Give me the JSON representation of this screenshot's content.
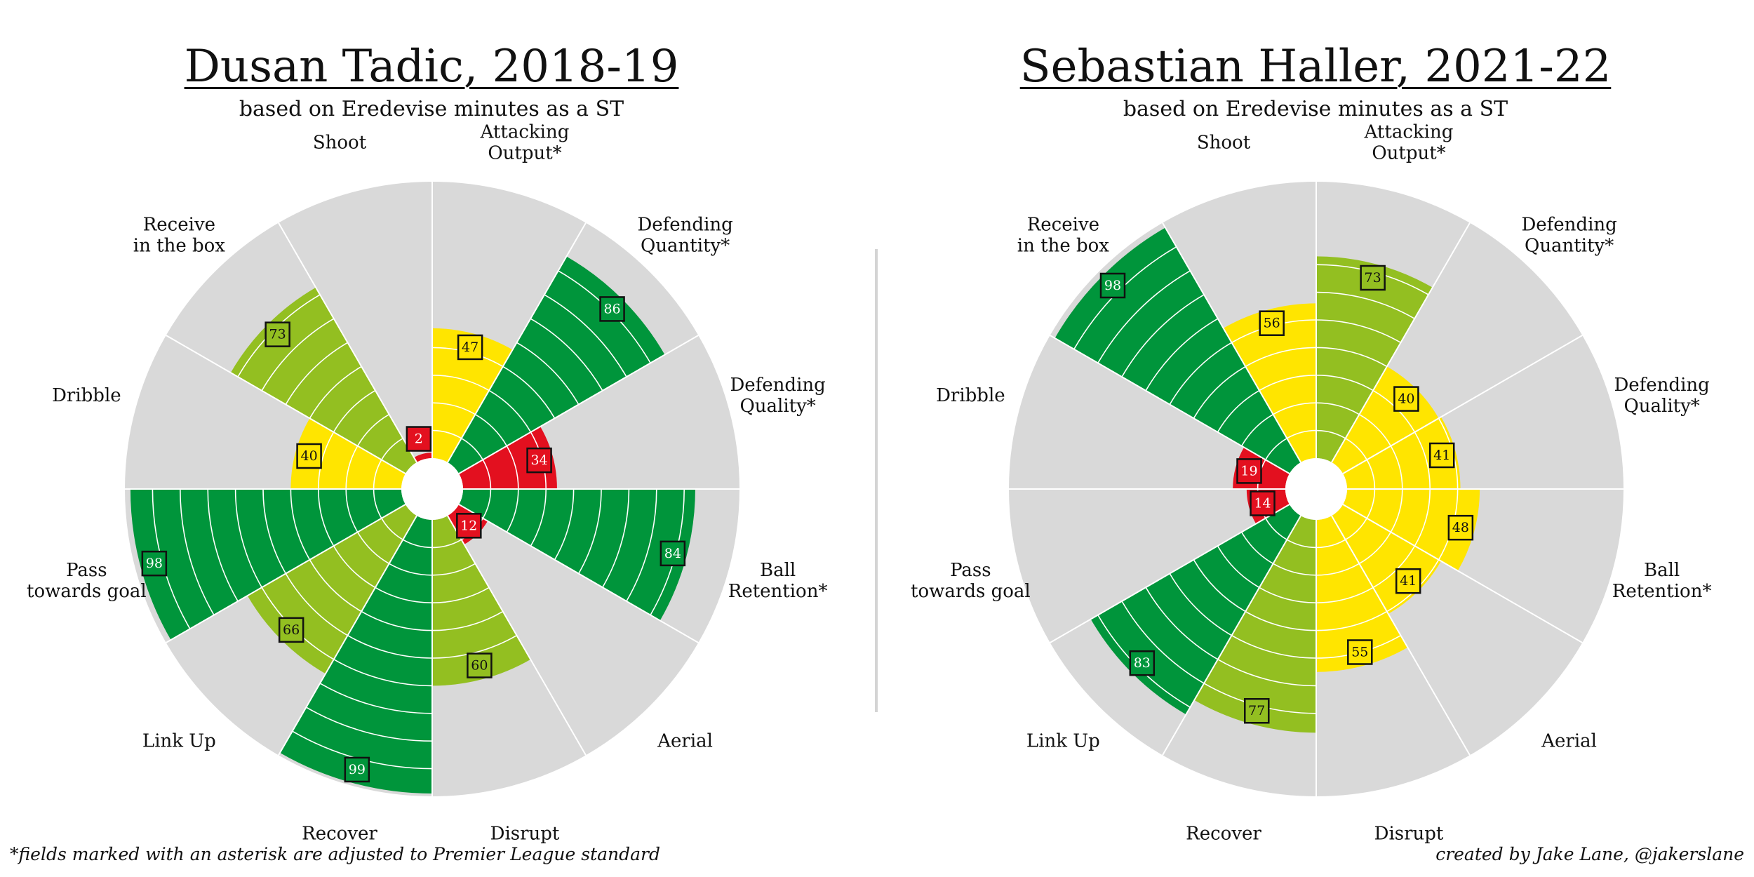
{
  "footnote": "*fields marked with an asterisk are adjusted to Premier League standard",
  "credit": "created by Jake Lane, @jakerslane",
  "colors": {
    "background_wedge": "#d9d9d9",
    "red": "#e3101f",
    "yellow": "#ffe500",
    "light_green": "#93bf21",
    "dark_green": "#00953b"
  },
  "chart_data": [
    {
      "type": "polar_bar",
      "title": "Dusan Tadic, 2018-19",
      "subtitle": "based on Eredevise minutes as a ST",
      "ylim": [
        0,
        100
      ],
      "categories": [
        "Attacking Output*",
        "Defending Quantity*",
        "Defending Quality*",
        "Ball Retention*",
        "Aerial",
        "Disrupt",
        "Recover",
        "Link Up",
        "Pass towards goal",
        "Dribble",
        "Receive in the box",
        "Shoot"
      ],
      "label_lines": [
        [
          "Attacking",
          "Output*"
        ],
        [
          "Defending",
          "Quantity*"
        ],
        [
          "Defending",
          "Quality*"
        ],
        [
          "Ball",
          "Retention*"
        ],
        [
          "Aerial"
        ],
        [
          "Disrupt"
        ],
        [
          "Recover"
        ],
        [
          "Link Up"
        ],
        [
          "Pass",
          "towards goal"
        ],
        [
          "Dribble"
        ],
        [
          "Receive",
          "in the box"
        ],
        [
          "Shoot"
        ]
      ],
      "values": [
        47,
        86,
        34,
        84,
        12,
        60,
        99,
        66,
        98,
        40,
        73,
        2
      ],
      "value_labels": [
        "47",
        "86",
        "34",
        "84",
        "12",
        "60",
        "99",
        "66",
        "98",
        "40",
        "73",
        "2"
      ],
      "bar_colors": [
        "yellow",
        "dark_green",
        "red",
        "dark_green",
        "red",
        "light_green",
        "dark_green",
        "light_green",
        "dark_green",
        "yellow",
        "light_green",
        "red"
      ]
    },
    {
      "type": "polar_bar",
      "title": "Sebastian Haller, 2021-22",
      "subtitle": "based on Eredevise minutes as a ST",
      "ylim": [
        0,
        100
      ],
      "categories": [
        "Attacking Output*",
        "Defending Quantity*",
        "Defending Quality*",
        "Ball Retention*",
        "Aerial",
        "Disrupt",
        "Recover",
        "Link Up",
        "Pass towards goal",
        "Dribble",
        "Receive in the box",
        "Shoot"
      ],
      "label_lines": [
        [
          "Attacking",
          "Output*"
        ],
        [
          "Defending",
          "Quantity*"
        ],
        [
          "Defending",
          "Quality*"
        ],
        [
          "Ball",
          "Retention*"
        ],
        [
          "Aerial"
        ],
        [
          "Disrupt"
        ],
        [
          "Recover"
        ],
        [
          "Link Up"
        ],
        [
          "Pass",
          "towards goal"
        ],
        [
          "Dribble"
        ],
        [
          "Receive",
          "in the box"
        ],
        [
          "Shoot"
        ]
      ],
      "values": [
        73,
        40,
        41,
        48,
        41,
        55,
        77,
        83,
        14,
        19,
        98,
        56
      ],
      "value_labels": [
        "73",
        "40",
        "41",
        "48",
        "41",
        "55",
        "77",
        "83",
        "14",
        "19",
        "98",
        "56"
      ],
      "bar_colors": [
        "light_green",
        "yellow",
        "yellow",
        "yellow",
        "yellow",
        "yellow",
        "light_green",
        "dark_green",
        "red",
        "red",
        "dark_green",
        "yellow"
      ]
    }
  ]
}
